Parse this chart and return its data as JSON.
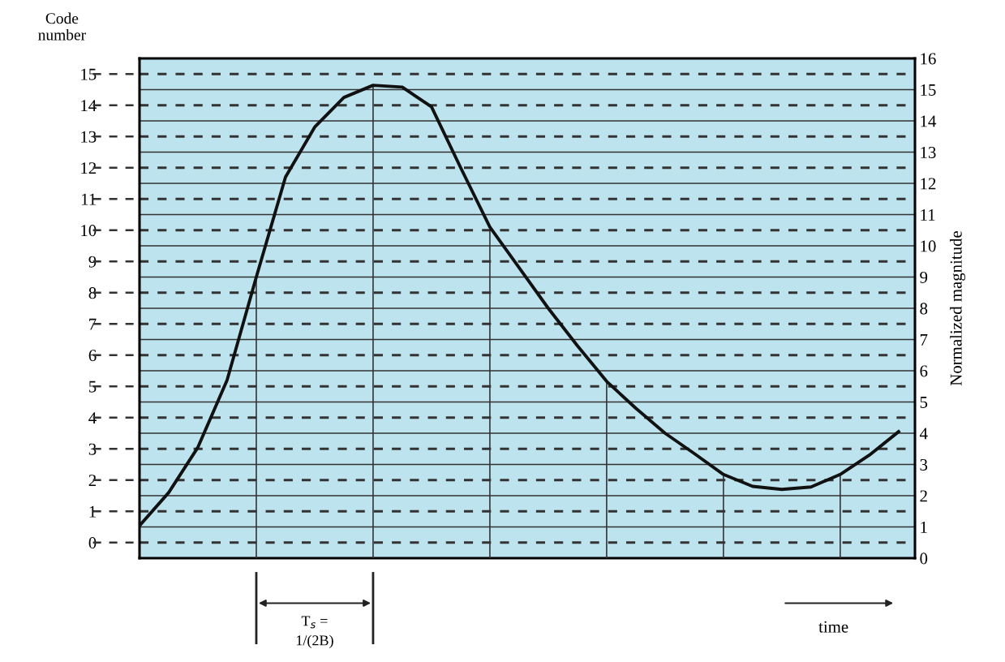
{
  "chart_data": {
    "type": "line",
    "ylabel": "Code\nnumber",
    "y2label": "Normalized magnitude",
    "annotations": [
      "T$_{s}$ =\n1/(2B)",
      "time"
    ],
    "categories": [
      null,
      null,
      null,
      null,
      null,
      null,
      null,
      null,
      null,
      null,
      null,
      null,
      null,
      null,
      null,
      null,
      null,
      null,
      null,
      null,
      null,
      null,
      null,
      null,
      null,
      null,
      null
    ],
    "series": [
      {
        "color": "#111111",
        "values": [
          1.04,
          2.1,
          3.55,
          5.7,
          9.0,
          12.2,
          13.8,
          14.75,
          15.14,
          15.08,
          14.45,
          12.5,
          10.6,
          9.3,
          8.0,
          6.8,
          5.66,
          4.8,
          4.0,
          3.35,
          2.68,
          2.3,
          2.2,
          2.28,
          2.68,
          3.3,
          4.05
        ]
      },
      {
        "type": "bar",
        "color": "#333333",
        "values": [
          null,
          null,
          null,
          null,
          9.0,
          null,
          null,
          null,
          15.14,
          null,
          null,
          null,
          10.6,
          null,
          null,
          null,
          5.66,
          null,
          null,
          null,
          2.68,
          null,
          null,
          null,
          2.68,
          null,
          null
        ]
      }
    ],
    "ylim": [
      0,
      16
    ],
    "y2lim": [
      0,
      16
    ],
    "yticks": [
      {
        "value": 0.5,
        "label": "0"
      },
      {
        "value": 1.5,
        "label": "1"
      },
      {
        "value": 2.5,
        "label": "2"
      },
      {
        "value": 3.5,
        "label": "3"
      },
      {
        "value": 4.5,
        "label": "4"
      },
      {
        "value": 5.5,
        "label": "5"
      },
      {
        "value": 6.5,
        "label": "6"
      },
      {
        "value": 7.5,
        "label": "7"
      },
      {
        "value": 8.5,
        "label": "8"
      },
      {
        "value": 9.5,
        "label": "9"
      },
      {
        "value": 10.5,
        "label": "10"
      },
      {
        "value": 11.5,
        "label": "11"
      },
      {
        "value": 12.5,
        "label": "12"
      },
      {
        "value": 13.5,
        "label": "13"
      },
      {
        "value": 14.5,
        "label": "14"
      },
      {
        "value": 15.5,
        "label": "15"
      }
    ],
    "y2ticks": [
      0,
      1,
      2,
      3,
      4,
      5,
      6,
      7,
      8,
      9,
      10,
      11,
      12,
      13,
      14,
      15,
      16
    ],
    "tick_labels": "y",
    "grid": true,
    "marker": "none",
    "line_style": "solid"
  }
}
